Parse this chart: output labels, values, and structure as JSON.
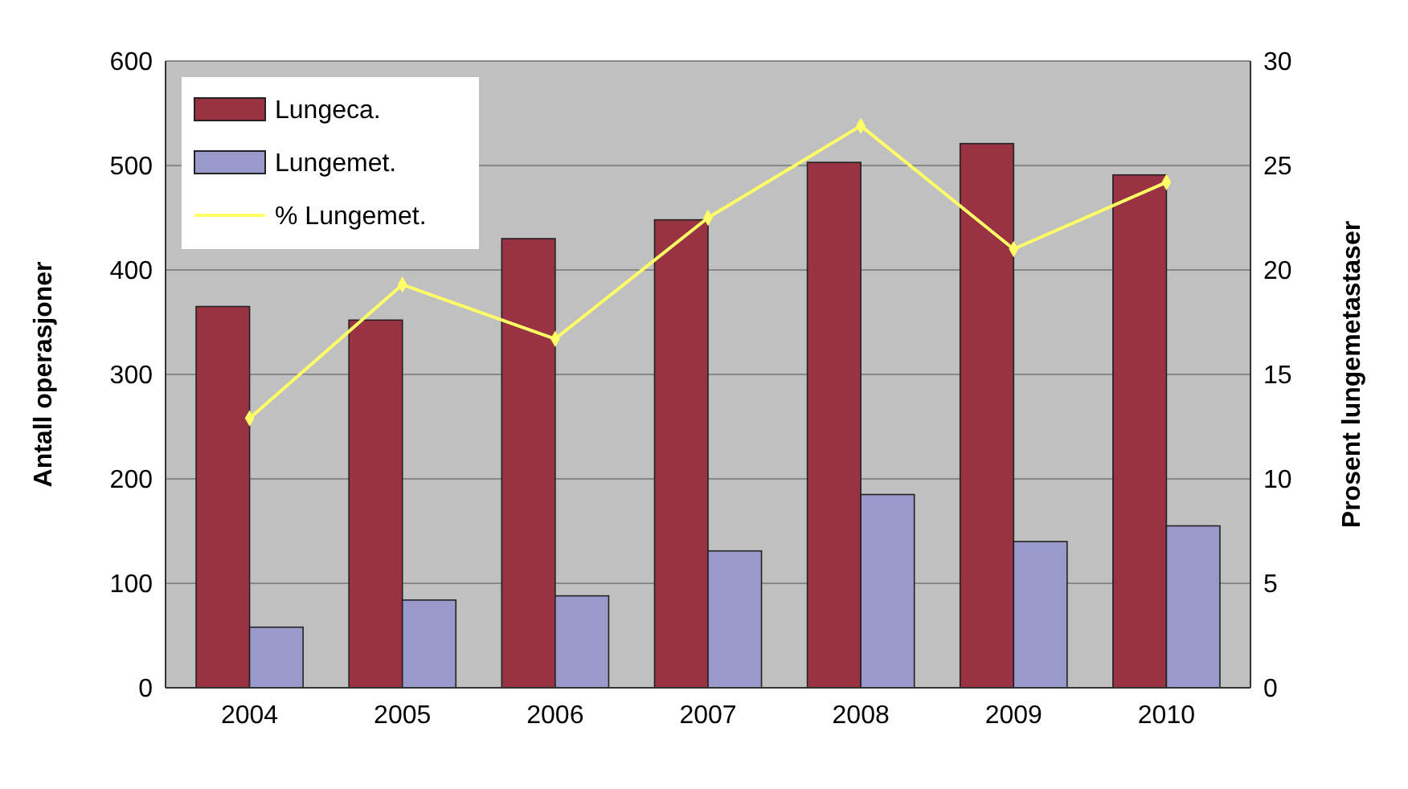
{
  "chart_data": {
    "type": "bar",
    "categories": [
      "2004",
      "2005",
      "2006",
      "2007",
      "2008",
      "2009",
      "2010"
    ],
    "series": [
      {
        "name": "Lungeca.",
        "color": "#993344",
        "values": [
          365,
          352,
          430,
          448,
          503,
          521,
          491
        ]
      },
      {
        "name": "Lungemet.",
        "color": "#9999cc",
        "values": [
          58,
          84,
          88,
          131,
          185,
          140,
          155
        ]
      },
      {
        "name": "% Lungemet.",
        "type": "line",
        "axis": "y2",
        "color": "#ffff66",
        "values": [
          12.9,
          19.3,
          16.7,
          22.5,
          26.9,
          21.0,
          24.2
        ]
      }
    ],
    "ylabel": "Antall operasjoner",
    "y2label": "Prosent lungemetastaser",
    "ylim": [
      0,
      600
    ],
    "yticks": [
      0,
      100,
      200,
      300,
      400,
      500,
      600
    ],
    "y2lim": [
      0,
      30
    ],
    "y2ticks": [
      0,
      5,
      10,
      15,
      20,
      25,
      30
    ],
    "grid": "y",
    "legend": "top left",
    "marker": "diamond"
  }
}
